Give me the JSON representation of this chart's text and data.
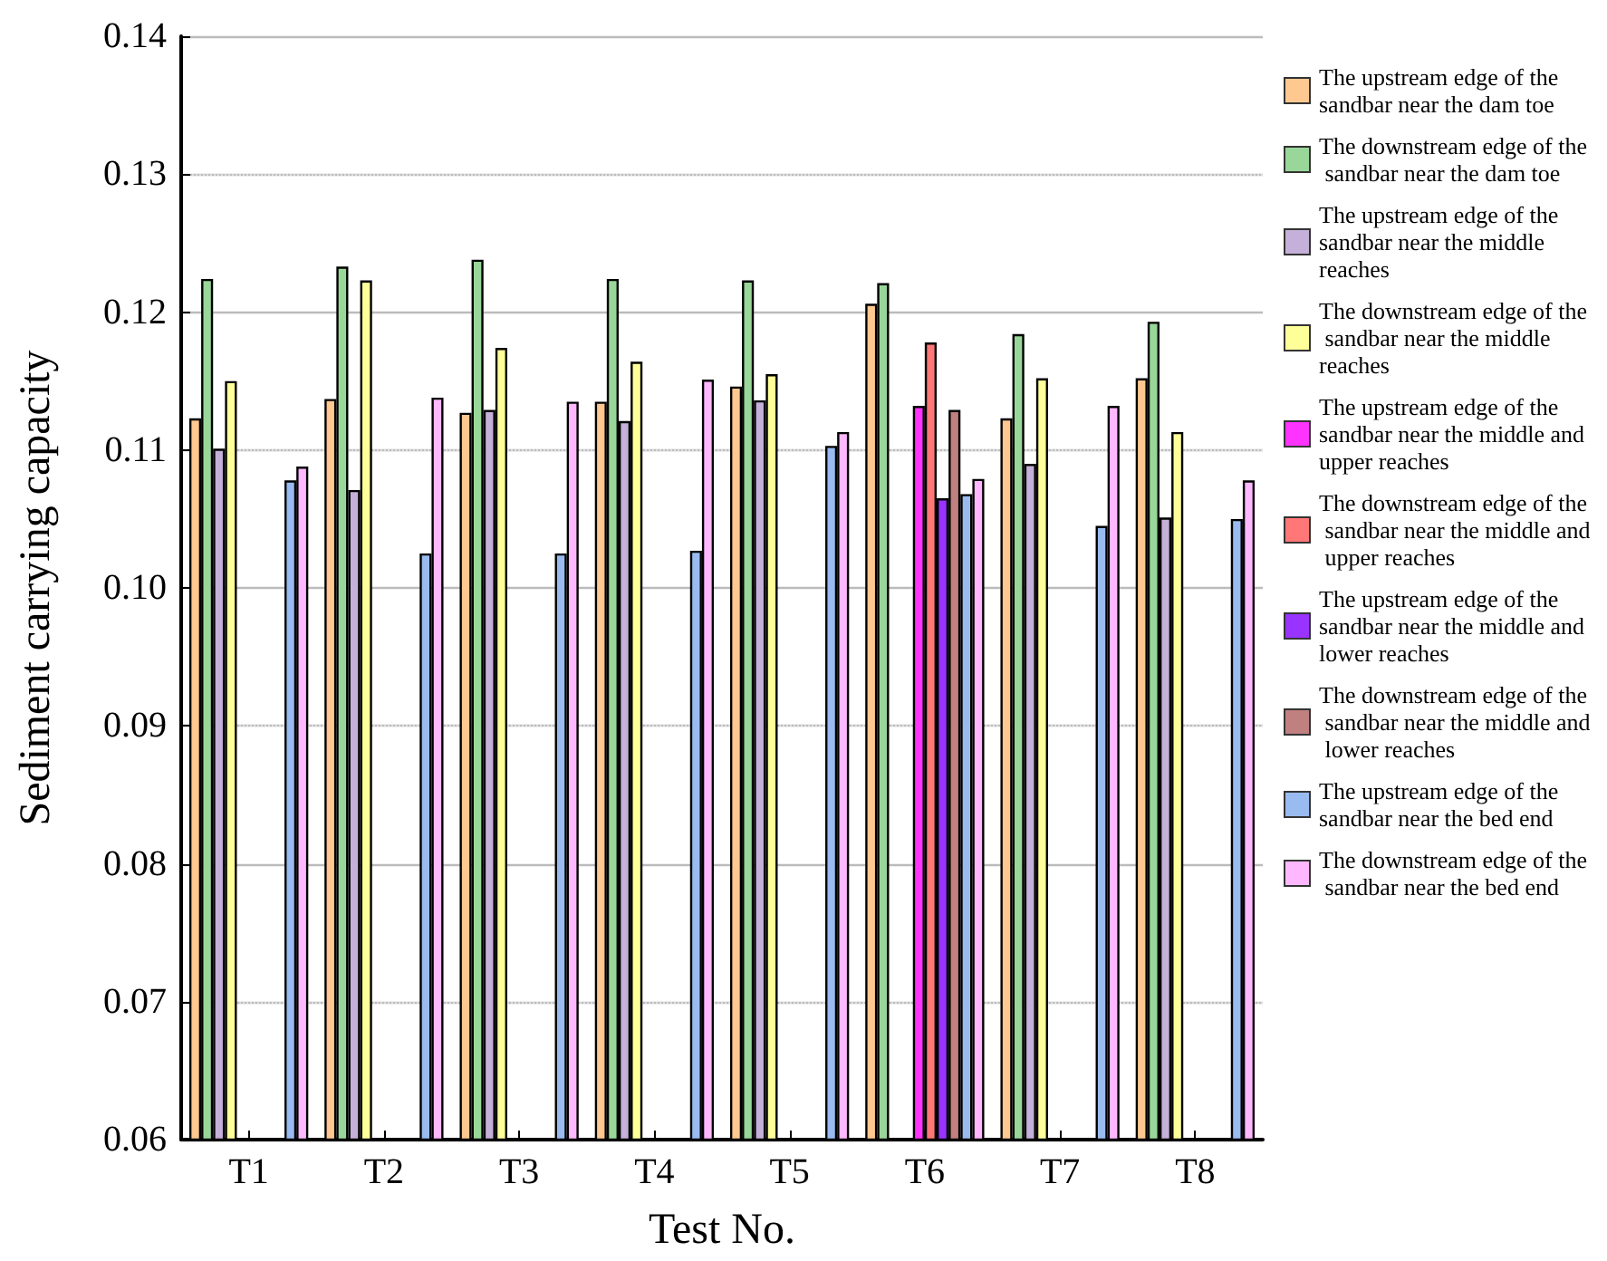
{
  "chart_data": {
    "type": "bar",
    "xlabel": "Test No.",
    "ylabel": "Sediment carrying capacity",
    "categories": [
      "T1",
      "T2",
      "T3",
      "T4",
      "T5",
      "T6",
      "T7",
      "T8"
    ],
    "ylim": [
      0.06,
      0.14
    ],
    "yticks": [
      0.06,
      0.07,
      0.08,
      0.09,
      {
        "value": 0.1,
        "label": "0.10"
      },
      0.11,
      0.12,
      0.13,
      0.14
    ],
    "grid": "y",
    "legend": "right",
    "series": [
      {
        "name": "The upstream edge of the sandbar near the dam toe",
        "color": "#ffc890",
        "values": [
          0.1123,
          0.1137,
          0.1127,
          0.1135,
          0.1146,
          0.1206,
          0.1123,
          0.1152
        ]
      },
      {
        "name": "The downstream edge of the sandbar near the dam toe",
        "color": "#99d699",
        "values": [
          0.1224,
          0.1233,
          0.1238,
          0.1224,
          0.1223,
          0.1221,
          0.1184,
          0.1193
        ]
      },
      {
        "name": "The upstream edge of the sandbar near the middle reaches",
        "color": "#c4b0d8",
        "values": [
          0.1101,
          0.1071,
          0.1129,
          0.1121,
          0.1136,
          null,
          0.109,
          0.1051
        ]
      },
      {
        "name": "The downstream edge of the sandbar near the middle reaches",
        "color": "#ffff99",
        "values": [
          0.115,
          0.1223,
          0.1174,
          0.1164,
          0.1155,
          null,
          0.1152,
          0.1113
        ]
      },
      {
        "name": "The upstream edge of the sandbar near the middle and upper reaches",
        "color": "#ff33ff",
        "values": [
          null,
          null,
          null,
          null,
          null,
          0.1132,
          null,
          null
        ]
      },
      {
        "name": "The downstream edge of the sandbar near the middle and upper reaches",
        "color": "#ff7777",
        "values": [
          null,
          null,
          null,
          null,
          null,
          0.1178,
          null,
          null
        ]
      },
      {
        "name": "The upstream edge of the sandbar near the middle and lower reaches",
        "color": "#9933ff",
        "values": [
          null,
          null,
          null,
          null,
          null,
          0.1065,
          null,
          null
        ]
      },
      {
        "name": "The downstream edge of the sandbar near the middle and lower reaches",
        "color": "#c08080",
        "values": [
          null,
          null,
          null,
          null,
          null,
          0.1129,
          null,
          null
        ]
      },
      {
        "name": "The upstream edge of the sandbar near the bed end",
        "color": "#99bbf0",
        "values": [
          0.1078,
          0.1025,
          0.1025,
          0.1027,
          0.1103,
          0.1068,
          0.1045,
          0.105
        ]
      },
      {
        "name": "The downstream edge of the sandbar near the bed end",
        "color": "#ffb8ff",
        "values": [
          0.1088,
          0.1138,
          0.1135,
          0.1151,
          0.1113,
          0.1079,
          0.1132,
          0.1078
        ]
      }
    ]
  }
}
